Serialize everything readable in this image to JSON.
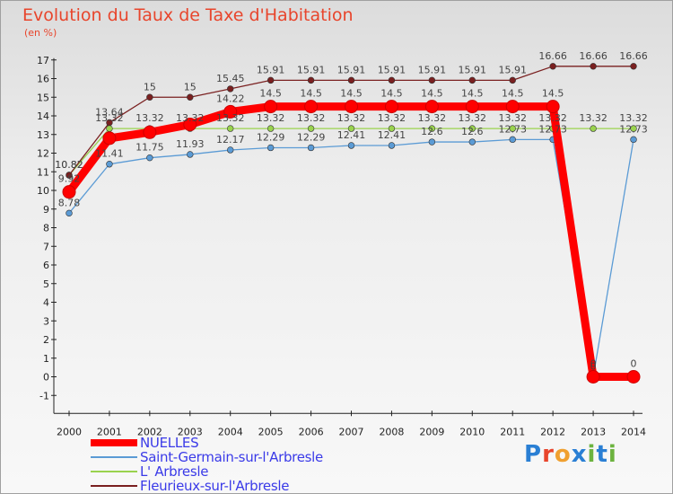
{
  "header": {
    "title": "Evolution du Taux de Taxe d'Habitation",
    "unit": "(en %)"
  },
  "logo": {
    "text": "Proxiti"
  },
  "chart_data": {
    "type": "line",
    "title": "Evolution du Taux de Taxe d'Habitation",
    "ylabel": "(en %)",
    "xlabel": "",
    "ylim": [
      -1,
      17
    ],
    "yticks": [
      "-1",
      "0",
      "1",
      "2",
      "3",
      "4",
      "5",
      "6",
      "7",
      "8",
      "9",
      "10",
      "11",
      "12",
      "13",
      "14",
      "15",
      "16",
      "17"
    ],
    "grid": false,
    "legend_position": "bottom-left",
    "categories": [
      "2000",
      "2001",
      "2002",
      "2003",
      "2004",
      "2005",
      "2006",
      "2007",
      "2008",
      "2009",
      "2010",
      "2011",
      "2012",
      "2013",
      "2014"
    ],
    "series": [
      {
        "name": "NUELLES",
        "color": "#ff0000",
        "values": [
          9.92,
          12.8,
          13.12,
          13.54,
          14.22,
          14.5,
          14.5,
          14.5,
          14.5,
          14.5,
          14.5,
          14.5,
          14.5,
          0,
          0
        ],
        "labels": [
          "9.92",
          "",
          "",
          "",
          "14.22",
          "14.5",
          "14.5",
          "14.5",
          "14.5",
          "14.5",
          "14.5",
          "14.5",
          "14.5",
          "0",
          "0"
        ]
      },
      {
        "name": "Saint-Germain-sur-l'Arbresle",
        "color": "#5b9bd5",
        "values": [
          8.78,
          11.41,
          11.75,
          11.93,
          12.17,
          12.29,
          12.29,
          12.41,
          12.41,
          12.6,
          12.6,
          12.73,
          12.73,
          0,
          12.73
        ],
        "labels": [
          "8.78",
          "11.41",
          "11.75",
          "11.93",
          "12.17",
          "12.29",
          "12.29",
          "12.41",
          "12.41",
          "12.6",
          "12.6",
          "12.73",
          "12.73",
          "0",
          "12.73"
        ]
      },
      {
        "name": "L' Arbresle",
        "color": "#9ad34e",
        "values": [
          10.82,
          13.32,
          13.32,
          13.32,
          13.32,
          13.32,
          13.32,
          13.32,
          13.32,
          13.32,
          13.32,
          13.32,
          13.32,
          13.32,
          13.32
        ],
        "labels": [
          "10.82",
          "13.32",
          "13.32",
          "13.32",
          "13.32",
          "13.32",
          "13.32",
          "13.32",
          "13.32",
          "13.32",
          "13.32",
          "13.32",
          "13.32",
          "13.32",
          "13.32"
        ]
      },
      {
        "name": "Fleurieux-sur-l'Arbresle",
        "color": "#7a2020",
        "values": [
          10.82,
          13.64,
          15,
          15,
          15.45,
          15.91,
          15.91,
          15.91,
          15.91,
          15.91,
          15.91,
          15.91,
          16.66,
          16.66,
          16.66
        ],
        "labels": [
          "10.82",
          "13.64",
          "15",
          "15",
          "15.45",
          "15.91",
          "15.91",
          "15.91",
          "15.91",
          "15.91",
          "15.91",
          "15.91",
          "16.66",
          "16.66",
          "16.66"
        ]
      }
    ]
  }
}
